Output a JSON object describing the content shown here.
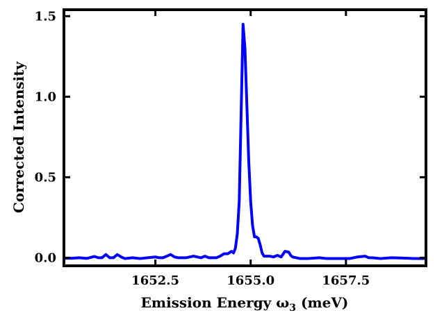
{
  "chart_data": {
    "type": "line",
    "title": "",
    "xlabel": "Emission Energy ω",
    "xlabel_subscript": "3",
    "xlabel_unit": " (meV)",
    "ylabel": "Corrected Intensity",
    "xlim": [
      1650.1,
      1659.6
    ],
    "ylim": [
      -0.05,
      1.54
    ],
    "x_ticks": [
      1652.5,
      1655.0,
      1657.5
    ],
    "x_tick_labels": [
      "1652.5",
      "1655.0",
      "1657.5"
    ],
    "y_ticks": [
      0.0,
      0.5,
      1.0,
      1.5
    ],
    "y_tick_labels": [
      "0.0",
      "0.5",
      "1.0",
      "1.5"
    ],
    "grid": false,
    "series": [
      {
        "color": "#0000ff",
        "x": [
          1650.1,
          1650.3,
          1650.5,
          1650.7,
          1650.9,
          1651.0,
          1651.1,
          1651.2,
          1651.3,
          1651.4,
          1651.5,
          1651.6,
          1651.7,
          1651.9,
          1652.1,
          1652.3,
          1652.5,
          1652.6,
          1652.7,
          1652.8,
          1652.9,
          1653.0,
          1653.1,
          1653.3,
          1653.5,
          1653.7,
          1653.8,
          1653.9,
          1654.0,
          1654.1,
          1654.2,
          1654.3,
          1654.4,
          1654.5,
          1654.55,
          1654.6,
          1654.65,
          1654.7,
          1654.75,
          1654.8,
          1654.85,
          1654.9,
          1654.95,
          1655.0,
          1655.05,
          1655.1,
          1655.15,
          1655.2,
          1655.25,
          1655.3,
          1655.35,
          1655.4,
          1655.5,
          1655.6,
          1655.7,
          1655.8,
          1655.9,
          1656.0,
          1656.05,
          1656.1,
          1656.2,
          1656.3,
          1656.5,
          1656.8,
          1657.0,
          1657.3,
          1657.6,
          1657.8,
          1658.0,
          1658.1,
          1658.2,
          1658.4,
          1658.7,
          1659.0,
          1659.3,
          1659.6
        ],
        "y": [
          -0.003,
          -0.003,
          0.0,
          -0.004,
          0.008,
          0.0,
          0.0,
          0.02,
          0.0,
          0.0,
          0.02,
          0.005,
          -0.005,
          0.0,
          -0.005,
          0.0,
          0.005,
          0.0,
          0.0,
          0.01,
          0.02,
          0.005,
          0.0,
          0.0,
          0.01,
          0.0,
          0.01,
          0.0,
          0.0,
          0.0,
          0.01,
          0.025,
          0.025,
          0.04,
          0.03,
          0.06,
          0.15,
          0.35,
          0.9,
          1.45,
          1.3,
          0.95,
          0.6,
          0.35,
          0.2,
          0.13,
          0.13,
          0.12,
          0.08,
          0.03,
          0.01,
          0.01,
          0.01,
          0.005,
          0.015,
          0.005,
          0.04,
          0.035,
          0.015,
          0.005,
          0.0,
          -0.005,
          -0.005,
          0.0,
          -0.005,
          -0.005,
          -0.005,
          0.005,
          0.01,
          0.0,
          0.0,
          -0.005,
          0.0,
          -0.002,
          -0.005,
          -0.005
        ]
      }
    ]
  }
}
